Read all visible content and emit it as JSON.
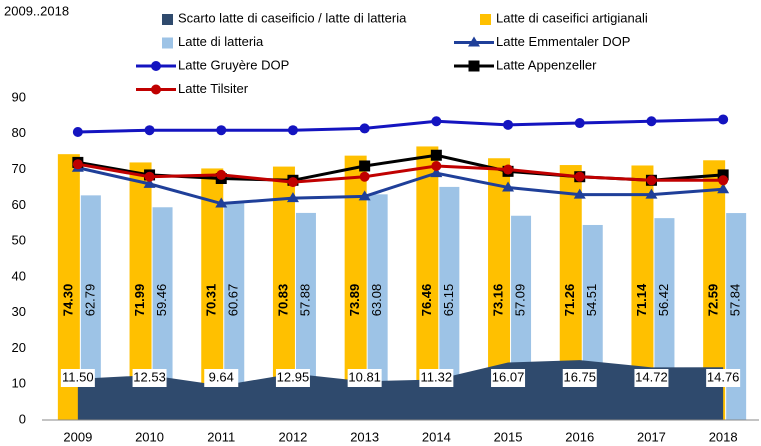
{
  "chart_data": {
    "type": "combo",
    "title": "2009..2018",
    "categories": [
      "2009",
      "2010",
      "2011",
      "2012",
      "2013",
      "2014",
      "2015",
      "2016",
      "2017",
      "2018"
    ],
    "ylim": [
      0,
      90
    ],
    "yticks": [
      0,
      10,
      20,
      30,
      40,
      50,
      60,
      70,
      80,
      90
    ],
    "grid": false,
    "series": [
      {
        "name": "Scarto latte di caseificio / latte di latteria",
        "type": "area",
        "color": "#2f4a6d",
        "values": [
          11.5,
          12.53,
          9.64,
          12.95,
          10.81,
          11.32,
          16.07,
          16.75,
          14.72,
          14.76
        ],
        "value_labels": [
          "11.50",
          "12.53",
          "9.64",
          "12.95",
          "10.81",
          "11.32",
          "16.07",
          "16.75",
          "14.72",
          "14.76"
        ]
      },
      {
        "name": "Latte di caseifici artigianali",
        "type": "bar",
        "color": "#ffc000",
        "values": [
          74.3,
          71.99,
          70.31,
          70.83,
          73.89,
          76.46,
          73.16,
          71.26,
          71.14,
          72.59
        ],
        "value_labels": [
          "74.30",
          "71.99",
          "70.31",
          "70.83",
          "73.89",
          "76.46",
          "73.16",
          "71.26",
          "71.14",
          "72.59"
        ]
      },
      {
        "name": "Latte di latteria",
        "type": "bar",
        "color": "#9dc3e6",
        "values": [
          62.79,
          59.46,
          60.67,
          57.88,
          63.08,
          65.15,
          57.09,
          54.51,
          56.42,
          57.84
        ],
        "value_labels": [
          "62.79",
          "59.46",
          "60.67",
          "57.88",
          "63.08",
          "65.15",
          "57.09",
          "54.51",
          "56.42",
          "57.84"
        ]
      },
      {
        "name": "Latte Emmentaler DOP",
        "type": "line",
        "marker": "triangle",
        "color": "#1f3f99",
        "values": [
          70.5,
          66,
          60.5,
          62,
          62.5,
          69,
          65,
          63,
          63,
          64.5
        ]
      },
      {
        "name": "Latte Gruyère DOP",
        "type": "line",
        "marker": "circle",
        "color": "#1414c0",
        "values": [
          80.5,
          81,
          81,
          81,
          81.5,
          83.5,
          82.5,
          83,
          83.5,
          84
        ]
      },
      {
        "name": "Latte Appenzeller",
        "type": "line",
        "marker": "square",
        "color": "#000000",
        "values": [
          72,
          68.5,
          67.5,
          67,
          71,
          74,
          69.5,
          68,
          67,
          68.5
        ]
      },
      {
        "name": "Latte Tilsiter",
        "type": "line",
        "marker": "circle",
        "color": "#c00000",
        "values": [
          71.5,
          68,
          68.5,
          66.5,
          68,
          71,
          70,
          68,
          67,
          67
        ]
      }
    ]
  }
}
